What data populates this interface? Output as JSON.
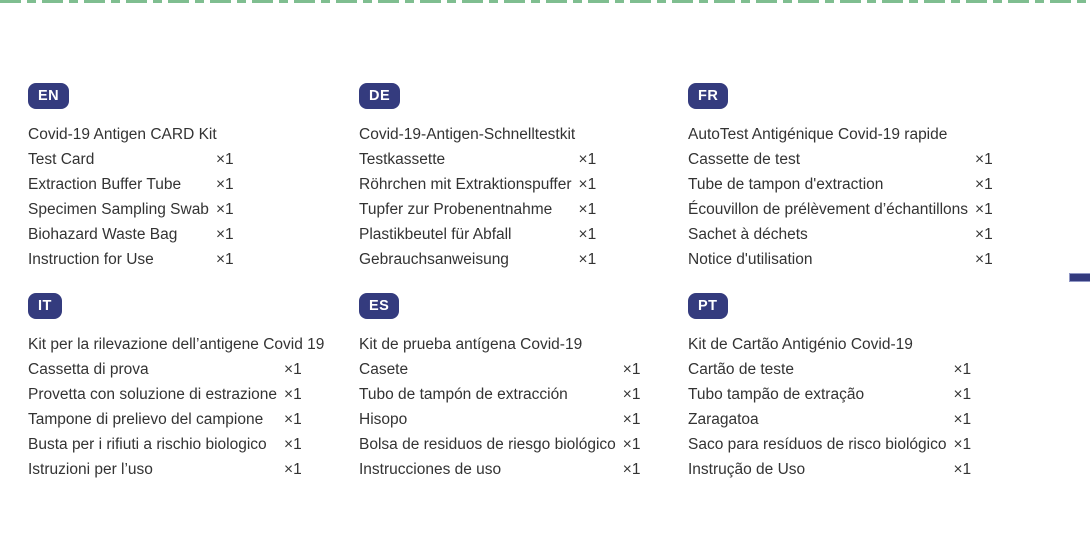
{
  "page": {
    "background_color": "#ffffff",
    "text_color": "#333333",
    "badge_color": "#343b7e",
    "dash_rule_color": "#7fbe90",
    "registration_mark_color": "#343b7e"
  },
  "decorations": {
    "top_rule": "green-dashed-line",
    "right_edge_mark": "navy-dash"
  },
  "blocks": [
    {
      "code": "EN",
      "title": "Covid-19 Antigen CARD Kit",
      "items": [
        {
          "label": "Test Card",
          "qty": "×1"
        },
        {
          "label": "Extraction Buffer Tube",
          "qty": "×1"
        },
        {
          "label": "Specimen Sampling Swab",
          "qty": "×1"
        },
        {
          "label": "Biohazard Waste Bag",
          "qty": "×1"
        },
        {
          "label": "Instruction for Use",
          "qty": "×1"
        }
      ]
    },
    {
      "code": "DE",
      "title": "Covid-19-Antigen-Schnelltestkit",
      "items": [
        {
          "label": "Testkassette",
          "qty": "×1"
        },
        {
          "label": "Röhrchen mit Extraktionspuffer",
          "qty": "×1"
        },
        {
          "label": "Tupfer zur Probenentnahme",
          "qty": "×1"
        },
        {
          "label": "Plastikbeutel für Abfall",
          "qty": "×1"
        },
        {
          "label": "Gebrauchsanweisung",
          "qty": "×1"
        }
      ]
    },
    {
      "code": "FR",
      "title": "AutoTest Antigénique Covid-19 rapide",
      "items": [
        {
          "label": "Cassette de test",
          "qty": "×1"
        },
        {
          "label": "Tube de tampon d'extraction",
          "qty": "×1"
        },
        {
          "label": "Écouvillon de prélèvement d’échantillons",
          "qty": "×1"
        },
        {
          "label": "Sachet à déchets",
          "qty": "×1"
        },
        {
          "label": "Notice d'utilisation",
          "qty": "×1"
        }
      ]
    },
    {
      "code": "IT",
      "title": "Kit per la rilevazione dell’antigene Covid 19",
      "items": [
        {
          "label": "Cassetta di prova",
          "qty": "×1"
        },
        {
          "label": "Provetta con soluzione di estrazione",
          "qty": "×1"
        },
        {
          "label": "Tampone di prelievo del campione",
          "qty": "×1"
        },
        {
          "label": "Busta per i rifiuti a rischio biologico",
          "qty": "×1"
        },
        {
          "label": "Istruzioni per l’uso",
          "qty": "×1"
        }
      ]
    },
    {
      "code": "ES",
      "title": "Kit de prueba antígena Covid-19",
      "items": [
        {
          "label": "Casete",
          "qty": "×1"
        },
        {
          "label": "Tubo de tampón de extracción",
          "qty": "×1"
        },
        {
          "label": "Hisopo",
          "qty": "×1"
        },
        {
          "label": "Bolsa de residuos de riesgo biológico",
          "qty": "×1"
        },
        {
          "label": "Instrucciones de uso",
          "qty": "×1"
        }
      ]
    },
    {
      "code": "PT",
      "title": "Kit de Cartão Antigénio Covid-19",
      "items": [
        {
          "label": "Cartão de teste",
          "qty": "×1"
        },
        {
          "label": "Tubo tampão de extração",
          "qty": "×1"
        },
        {
          "label": "Zaragatoa",
          "qty": "×1"
        },
        {
          "label": "Saco para resíduos de risco biológico",
          "qty": "×1"
        },
        {
          "label": "Instrução de Uso",
          "qty": "×1"
        }
      ]
    }
  ]
}
